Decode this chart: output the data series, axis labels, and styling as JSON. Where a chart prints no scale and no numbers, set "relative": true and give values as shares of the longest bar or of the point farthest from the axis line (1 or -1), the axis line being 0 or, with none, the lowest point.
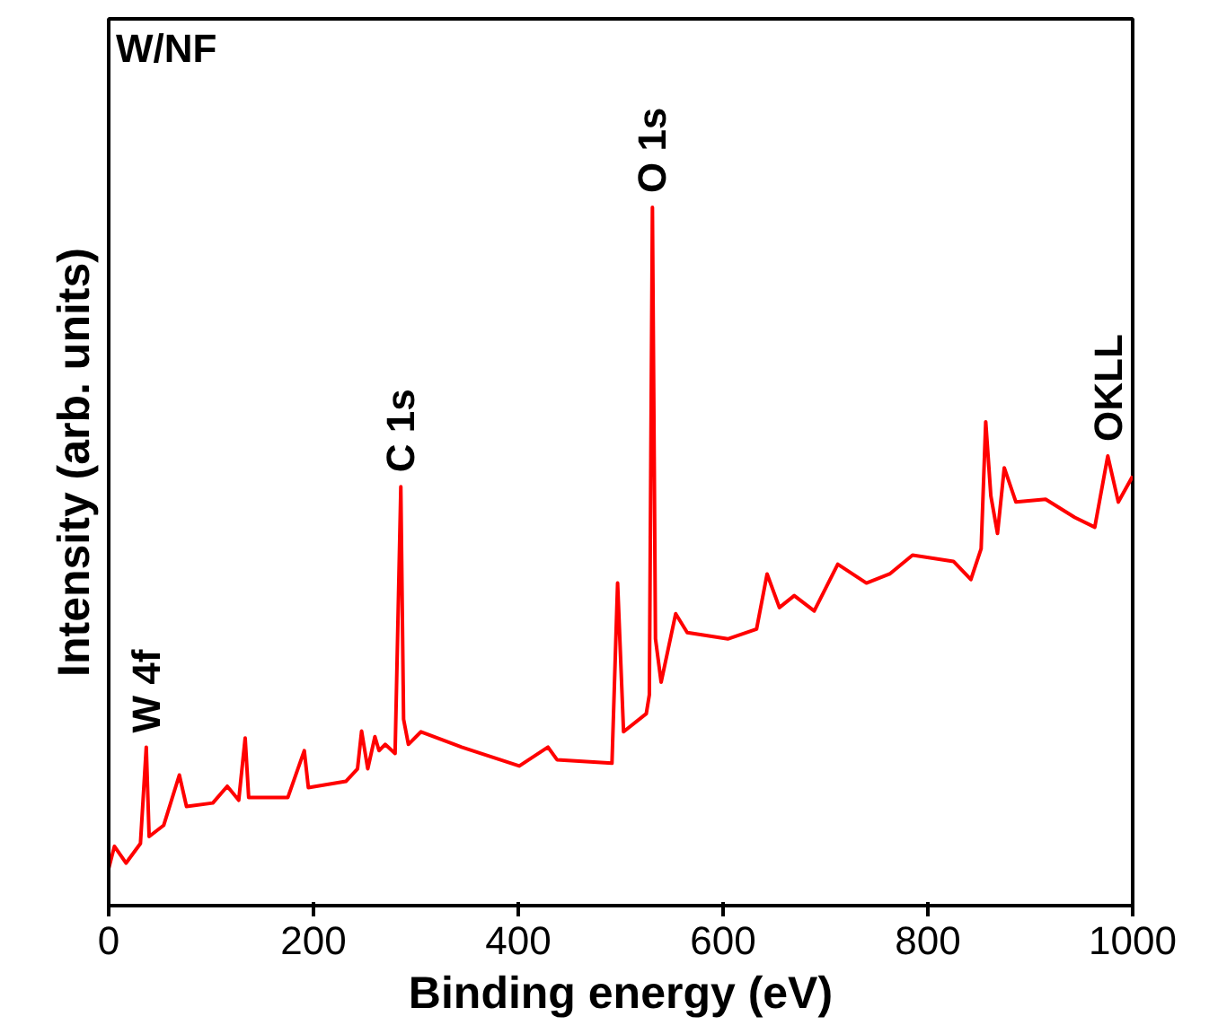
{
  "chart_data": {
    "type": "line",
    "xlabel": "Binding energy (eV)",
    "ylabel": "Intensity (arb. units)",
    "relative": true,
    "xlim": [
      0,
      1000
    ],
    "xticks": [
      0,
      200,
      400,
      600,
      800,
      1000
    ],
    "grid": false,
    "annotations": [
      "W/NF",
      {
        "text": "W 4f",
        "x": 37,
        "y": 0.227
      },
      {
        "text": "C 1s",
        "x": 285,
        "y": 0.6
      },
      {
        "text": "O 1s",
        "x": 531,
        "y": 1.0
      },
      {
        "text": "OKLL",
        "x": 976,
        "y": 0.644
      }
    ],
    "series": [
      {
        "color": "#ff0000",
        "x": [
          0,
          5.6,
          17,
          31,
          36.7,
          39.5,
          53.7,
          69,
          76,
          101.7,
          115.8,
          127,
          133.3,
          136.7,
          175,
          191,
          195,
          231.6,
          243,
          247,
          253,
          260,
          264,
          270,
          279.7,
          285.3,
          288,
          292.7,
          305,
          344.6,
          401,
          429,
          437.8,
          491.5,
          497,
          502.8,
          525,
          528,
          531,
          534,
          539.5,
          553.7,
          565,
          604.6,
          632.7,
          643,
          655,
          669.5,
          689,
          712,
          740,
          762.7,
          785,
          825,
          842,
          852,
          856.5,
          861.5,
          868,
          874.6,
          886,
          915,
          943.5,
          963,
          975.7,
          986,
          1000
        ],
        "values": [
          0.053,
          0.085,
          0.061,
          0.089,
          0.227,
          0.099,
          0.115,
          0.187,
          0.142,
          0.147,
          0.171,
          0.151,
          0.24,
          0.155,
          0.155,
          0.222,
          0.169,
          0.178,
          0.196,
          0.25,
          0.196,
          0.242,
          0.222,
          0.231,
          0.218,
          0.6,
          0.267,
          0.231,
          0.249,
          0.227,
          0.2,
          0.227,
          0.209,
          0.204,
          0.462,
          0.249,
          0.275,
          0.302,
          1.0,
          0.382,
          0.32,
          0.418,
          0.391,
          0.382,
          0.396,
          0.475,
          0.427,
          0.444,
          0.422,
          0.489,
          0.462,
          0.475,
          0.502,
          0.493,
          0.467,
          0.511,
          0.693,
          0.587,
          0.533,
          0.627,
          0.578,
          0.582,
          0.556,
          0.542,
          0.644,
          0.578,
          0.615
        ]
      }
    ]
  }
}
